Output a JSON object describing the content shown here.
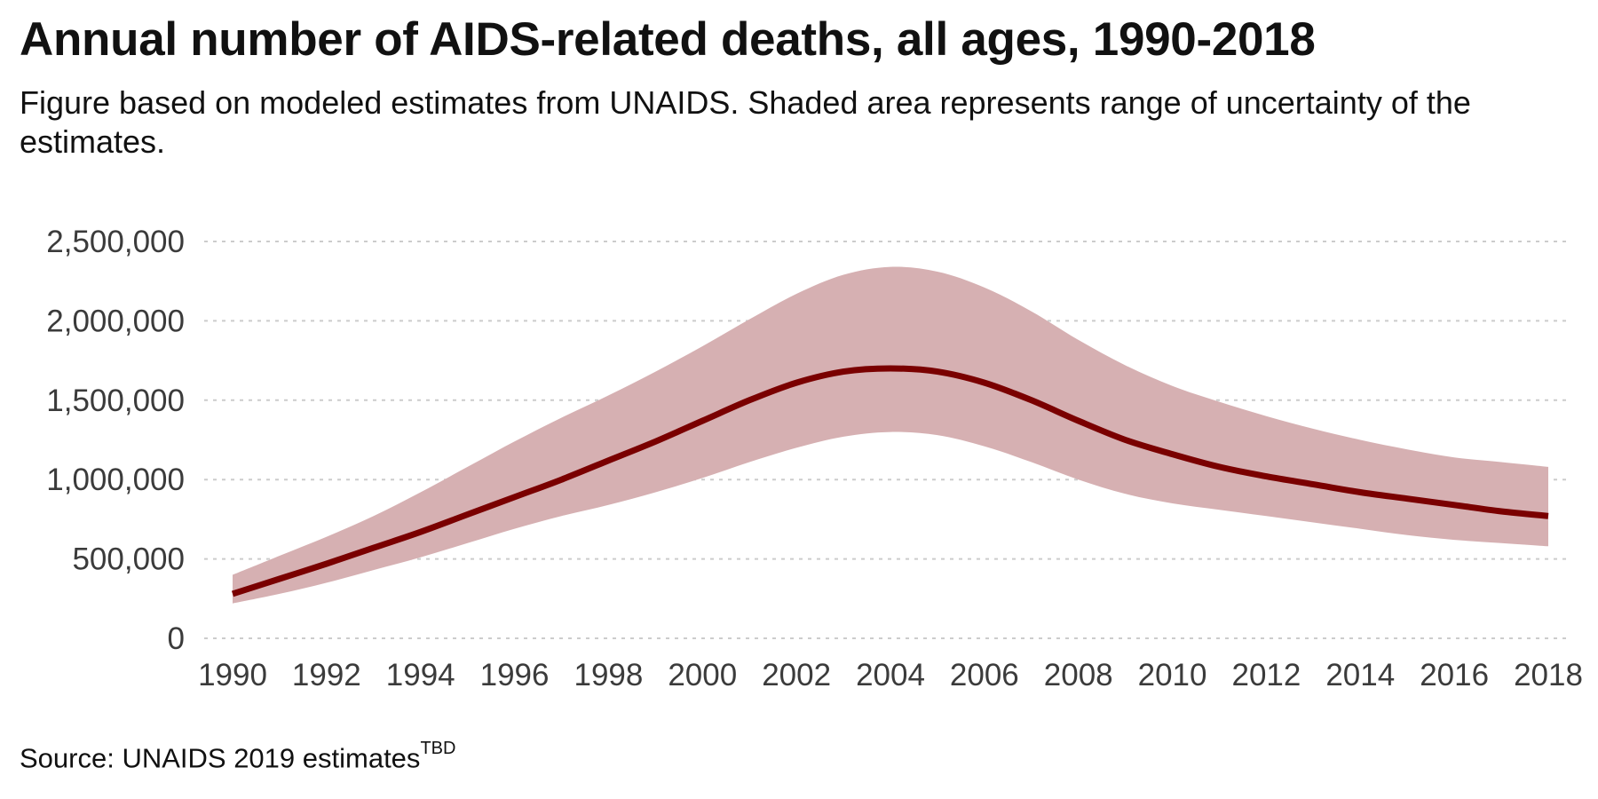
{
  "chart_data": {
    "type": "area",
    "title": "Annual number of AIDS-related deaths, all ages, 1990-2018",
    "subtitle": "Figure based on modeled estimates from UNAIDS. Shaded area represents range of uncertainty of the estimates.",
    "xlabel": "",
    "ylabel": "",
    "x": [
      1990,
      1991,
      1992,
      1993,
      1994,
      1995,
      1996,
      1997,
      1998,
      1999,
      2000,
      2001,
      2002,
      2003,
      2004,
      2005,
      2006,
      2007,
      2008,
      2009,
      2010,
      2011,
      2012,
      2013,
      2014,
      2015,
      2016,
      2017,
      2018
    ],
    "series": [
      {
        "role": "estimate",
        "values": [
          280000,
          375000,
          470000,
          570000,
          670000,
          780000,
          890000,
          1000000,
          1120000,
          1240000,
          1370000,
          1500000,
          1610000,
          1680000,
          1700000,
          1680000,
          1610000,
          1500000,
          1370000,
          1250000,
          1160000,
          1080000,
          1020000,
          970000,
          920000,
          880000,
          840000,
          800000,
          770000
        ]
      },
      {
        "role": "upper",
        "values": [
          400000,
          520000,
          640000,
          770000,
          920000,
          1080000,
          1240000,
          1390000,
          1530000,
          1680000,
          1840000,
          2010000,
          2170000,
          2290000,
          2340000,
          2310000,
          2210000,
          2060000,
          1880000,
          1720000,
          1590000,
          1490000,
          1400000,
          1320000,
          1250000,
          1190000,
          1140000,
          1110000,
          1080000
        ]
      },
      {
        "role": "lower",
        "values": [
          220000,
          280000,
          350000,
          430000,
          510000,
          600000,
          690000,
          770000,
          840000,
          920000,
          1010000,
          1110000,
          1200000,
          1270000,
          1300000,
          1280000,
          1210000,
          1110000,
          1000000,
          910000,
          850000,
          810000,
          770000,
          730000,
          690000,
          650000,
          620000,
          600000,
          580000
        ]
      }
    ],
    "xticks": [
      "1990",
      "1992",
      "1994",
      "1996",
      "1998",
      "2000",
      "2002",
      "2004",
      "2006",
      "2008",
      "2010",
      "2012",
      "2014",
      "2016",
      "2018"
    ],
    "yticks": [
      {
        "value": 0,
        "label": "0"
      },
      {
        "value": 500000,
        "label": "500,000"
      },
      {
        "value": 1000000,
        "label": "1,000,000"
      },
      {
        "value": 1500000,
        "label": "1,500,000"
      },
      {
        "value": 2000000,
        "label": "2,000,000"
      },
      {
        "value": 2500000,
        "label": "2,500,000"
      }
    ],
    "xlim": [
      1990,
      2018
    ],
    "ylim": [
      0,
      2500000
    ],
    "grid": "horizontal-dashed",
    "legend": "none",
    "colors": {
      "line": "#7a0000",
      "band": "#d6b0b2",
      "grid": "#cccccc",
      "text": "#3b3b3b"
    }
  },
  "source": {
    "text": "Source: UNAIDS 2019  estimates",
    "superscript": "TBD"
  }
}
